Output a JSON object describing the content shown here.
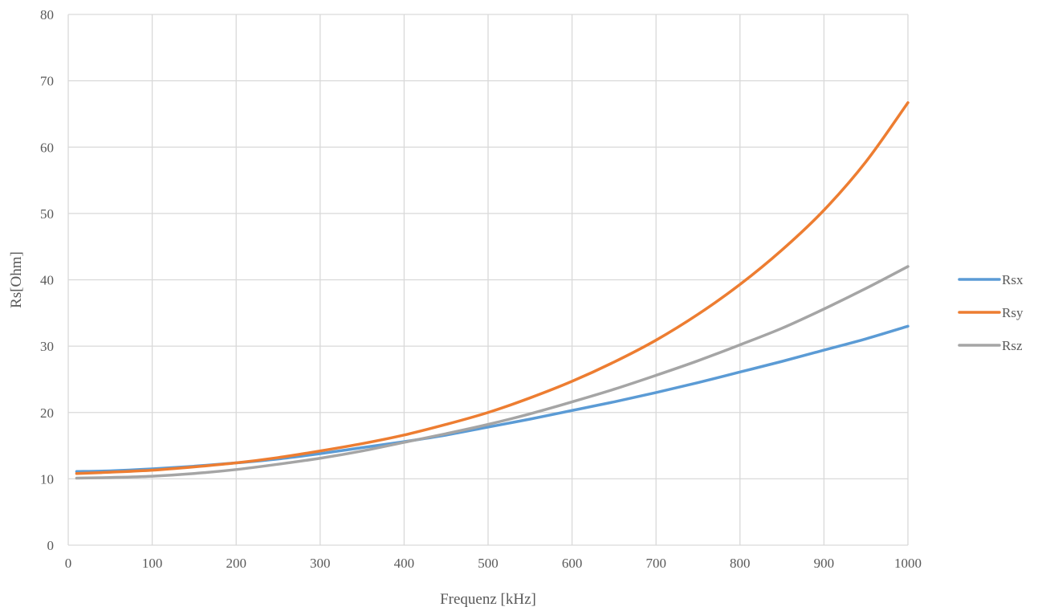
{
  "chart_data": {
    "type": "line",
    "title": "",
    "xlabel": "Frequenz [kHz]",
    "ylabel": "Rs[Ohm]",
    "xlim": [
      0,
      1000
    ],
    "ylim": [
      0,
      80
    ],
    "x_ticks": [
      0,
      100,
      200,
      300,
      400,
      500,
      600,
      700,
      800,
      900,
      1000
    ],
    "y_ticks": [
      0,
      10,
      20,
      30,
      40,
      50,
      60,
      70,
      80
    ],
    "grid": true,
    "legend_position": "right",
    "x": [
      10,
      50,
      100,
      150,
      200,
      250,
      300,
      350,
      400,
      450,
      500,
      550,
      600,
      650,
      700,
      750,
      800,
      850,
      900,
      950,
      1000
    ],
    "series": [
      {
        "name": "Rsx",
        "color": "#5b9bd5",
        "values": [
          11.1,
          11.2,
          11.5,
          11.9,
          12.4,
          13.0,
          13.8,
          14.7,
          15.6,
          16.6,
          17.8,
          19.0,
          20.3,
          21.6,
          23.0,
          24.5,
          26.1,
          27.7,
          29.4,
          31.1,
          33.0
        ]
      },
      {
        "name": "Rsy",
        "color": "#ed7d31",
        "values": [
          10.8,
          11.0,
          11.3,
          11.8,
          12.4,
          13.2,
          14.2,
          15.3,
          16.6,
          18.2,
          20.0,
          22.2,
          24.7,
          27.6,
          30.9,
          34.8,
          39.3,
          44.5,
          50.5,
          57.8,
          66.7
        ]
      },
      {
        "name": "Rsz",
        "color": "#a5a5a5",
        "values": [
          10.1,
          10.2,
          10.4,
          10.8,
          11.4,
          12.2,
          13.1,
          14.2,
          15.5,
          16.8,
          18.2,
          19.8,
          21.6,
          23.5,
          25.6,
          27.8,
          30.2,
          32.7,
          35.6,
          38.7,
          42.0
        ]
      }
    ]
  }
}
